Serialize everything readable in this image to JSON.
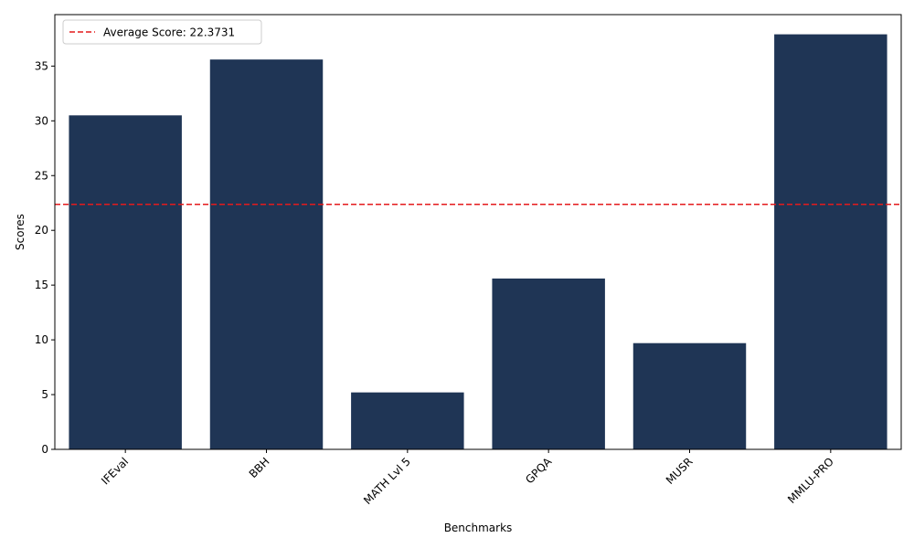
{
  "chart_data": {
    "type": "bar",
    "categories": [
      "IFEval",
      "BBH",
      "MATH Lvl 5",
      "GPQA",
      "MUSR",
      "MMLU-PRO"
    ],
    "values": [
      30.5,
      35.6,
      5.2,
      15.6,
      9.7,
      37.9
    ],
    "xlabel": "Benchmarks",
    "ylabel": "Scores",
    "ylim": [
      0,
      39.7
    ],
    "yticks": [
      0,
      5,
      10,
      15,
      20,
      25,
      30,
      35
    ],
    "average": 22.3731,
    "legend": {
      "label": "Average Score: 22.3731",
      "placement": "top-left"
    },
    "grid": false,
    "colors": {
      "bar": "#1f3555",
      "average_line": "#e41a1c"
    }
  }
}
